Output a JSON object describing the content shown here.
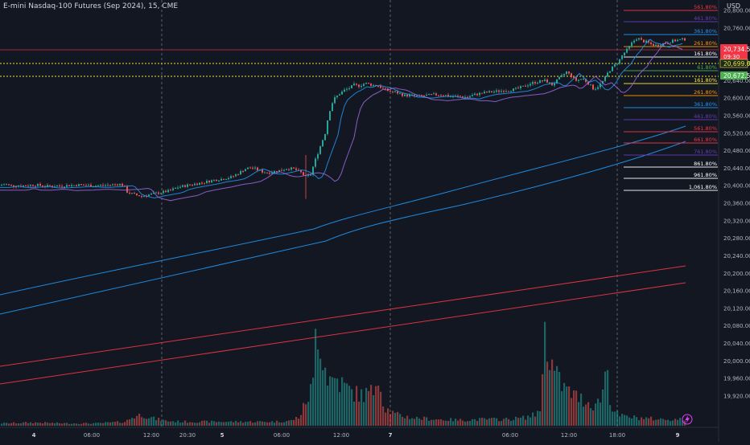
{
  "chart_data": {
    "type": "candlestick",
    "title": "E-mini Nasdaq-100 Futures (Sep 2024), 15, CME",
    "currency": "USD",
    "ylim": [
      19890,
      20830
    ],
    "y_ticks": [
      "20,800.00",
      "20,760.00",
      "20,680.00",
      "20,640.00",
      "20,600.00",
      "20,560.00",
      "20,520.00",
      "20,480.00",
      "20,440.00",
      "20,400.00",
      "20,360.00",
      "20,320.00",
      "20,280.00",
      "20,240.00",
      "20,200.00",
      "20,160.00",
      "20,120.00",
      "20,080.00",
      "20,040.00",
      "20,000.00",
      "19,960.00",
      "19,920.00"
    ],
    "x_ticks": [
      "4",
      "06:00",
      "12:00",
      "20:30",
      "5",
      "06:00",
      "12:00",
      "7",
      "06:00",
      "12:00",
      "18:00",
      "9"
    ],
    "current_price": "20,734.50",
    "countdown": "09:30",
    "level_labels": [
      "20,699.00",
      "20,672.50"
    ],
    "fib_upper": [
      "561.80%",
      "461.80%",
      "361.80%",
      "261.80%",
      "161.80%",
      "61.80%"
    ],
    "fib_lower": [
      "161.80%",
      "261.80%",
      "361.80%",
      "461.80%",
      "561.80%",
      "661.80%",
      "761.80%",
      "861.80%",
      "961.80%",
      "1,061.80%"
    ],
    "fib_colors_upper": [
      "#f23645",
      "#673ab7",
      "#2196f3",
      "#ff9800",
      "#ffffff",
      "#4caf50"
    ],
    "fib_colors_lower": [
      "#ffeb3b",
      "#ff9800",
      "#2196f3",
      "#673ab7",
      "#f23645",
      "#f23645",
      "#673ab7",
      "#ffffff",
      "#ffffff",
      "#ffffff"
    ],
    "up_color": "#26a69a",
    "down_color": "#ef5350",
    "price_path": [
      [
        0,
        20400
      ],
      [
        8,
        20404
      ],
      [
        16,
        20400
      ],
      [
        30,
        20400
      ],
      [
        46,
        20402
      ],
      [
        60,
        20399
      ],
      [
        80,
        20400
      ],
      [
        100,
        20402
      ],
      [
        120,
        20400
      ],
      [
        140,
        20402
      ],
      [
        150,
        20404
      ],
      [
        156,
        20400
      ],
      [
        160,
        20386
      ],
      [
        168,
        20380
      ],
      [
        178,
        20376
      ],
      [
        188,
        20380
      ],
      [
        200,
        20384
      ],
      [
        212,
        20388
      ],
      [
        222,
        20396
      ],
      [
        232,
        20400
      ],
      [
        244,
        20404
      ],
      [
        256,
        20408
      ],
      [
        268,
        20413
      ],
      [
        280,
        20416
      ],
      [
        290,
        20420
      ],
      [
        298,
        20428
      ],
      [
        306,
        20438
      ],
      [
        314,
        20442
      ],
      [
        320,
        20438
      ],
      [
        328,
        20432
      ],
      [
        336,
        20430
      ],
      [
        344,
        20433
      ],
      [
        352,
        20436
      ],
      [
        360,
        20440
      ],
      [
        368,
        20438
      ],
      [
        376,
        20430
      ],
      [
        382,
        20420
      ],
      [
        388,
        20426
      ],
      [
        394,
        20460
      ],
      [
        400,
        20490
      ],
      [
        406,
        20520
      ],
      [
        410,
        20560
      ],
      [
        414,
        20586
      ],
      [
        418,
        20600
      ],
      [
        424,
        20610
      ],
      [
        430,
        20618
      ],
      [
        436,
        20623
      ],
      [
        442,
        20630
      ],
      [
        448,
        20628
      ],
      [
        456,
        20634
      ],
      [
        464,
        20630
      ],
      [
        472,
        20628
      ],
      [
        480,
        20620
      ],
      [
        488,
        20615
      ],
      [
        496,
        20612
      ],
      [
        504,
        20606
      ],
      [
        512,
        20606
      ],
      [
        522,
        20604
      ],
      [
        532,
        20606
      ],
      [
        542,
        20608
      ],
      [
        552,
        20608
      ],
      [
        562,
        20604
      ],
      [
        572,
        20604
      ],
      [
        582,
        20602
      ],
      [
        592,
        20608
      ],
      [
        602,
        20612
      ],
      [
        612,
        20614
      ],
      [
        622,
        20616
      ],
      [
        632,
        20618
      ],
      [
        642,
        20620
      ],
      [
        652,
        20626
      ],
      [
        662,
        20634
      ],
      [
        672,
        20638
      ],
      [
        680,
        20640
      ],
      [
        688,
        20630
      ],
      [
        694,
        20640
      ],
      [
        700,
        20650
      ],
      [
        706,
        20660
      ],
      [
        712,
        20650
      ],
      [
        718,
        20640
      ],
      [
        726,
        20645
      ],
      [
        734,
        20632
      ],
      [
        740,
        20620
      ],
      [
        746,
        20628
      ],
      [
        752,
        20640
      ],
      [
        758,
        20660
      ],
      [
        764,
        20672
      ],
      [
        770,
        20682
      ],
      [
        776,
        20700
      ],
      [
        782,
        20712
      ],
      [
        788,
        20728
      ],
      [
        794,
        20738
      ],
      [
        800,
        20730
      ],
      [
        806,
        20728
      ],
      [
        812,
        20722
      ],
      [
        818,
        20720
      ],
      [
        824,
        20724
      ],
      [
        830,
        20726
      ],
      [
        836,
        20730
      ],
      [
        844,
        20732
      ],
      [
        850,
        20734
      ]
    ],
    "volume_profile": [
      [
        0,
        3
      ],
      [
        40,
        4
      ],
      [
        80,
        3
      ],
      [
        120,
        3
      ],
      [
        155,
        5
      ],
      [
        162,
        10
      ],
      [
        175,
        14
      ],
      [
        190,
        9
      ],
      [
        205,
        6
      ],
      [
        225,
        5
      ],
      [
        250,
        5
      ],
      [
        280,
        5
      ],
      [
        310,
        5
      ],
      [
        340,
        5
      ],
      [
        360,
        6
      ],
      [
        372,
        12
      ],
      [
        378,
        28
      ],
      [
        383,
        38
      ],
      [
        388,
        52
      ],
      [
        392,
        135
      ],
      [
        396,
        112
      ],
      [
        401,
        80
      ],
      [
        406,
        62
      ],
      [
        411,
        56
      ],
      [
        416,
        60
      ],
      [
        421,
        54
      ],
      [
        428,
        48
      ],
      [
        436,
        42
      ],
      [
        446,
        38
      ],
      [
        456,
        40
      ],
      [
        464,
        42
      ],
      [
        468,
        80
      ],
      [
        473,
        36
      ],
      [
        478,
        22
      ],
      [
        490,
        14
      ],
      [
        510,
        10
      ],
      [
        540,
        8
      ],
      [
        570,
        7
      ],
      [
        600,
        8
      ],
      [
        630,
        8
      ],
      [
        650,
        10
      ],
      [
        665,
        14
      ],
      [
        672,
        28
      ],
      [
        676,
        132
      ],
      [
        681,
        92
      ],
      [
        686,
        70
      ],
      [
        691,
        60
      ],
      [
        696,
        52
      ],
      [
        701,
        46
      ],
      [
        706,
        42
      ],
      [
        712,
        38
      ],
      [
        720,
        34
      ],
      [
        728,
        30
      ],
      [
        736,
        26
      ],
      [
        744,
        30
      ],
      [
        749,
        50
      ],
      [
        753,
        80
      ],
      [
        758,
        24
      ],
      [
        764,
        16
      ],
      [
        770,
        12
      ],
      [
        790,
        10
      ],
      [
        820,
        8
      ],
      [
        850,
        8
      ]
    ]
  }
}
